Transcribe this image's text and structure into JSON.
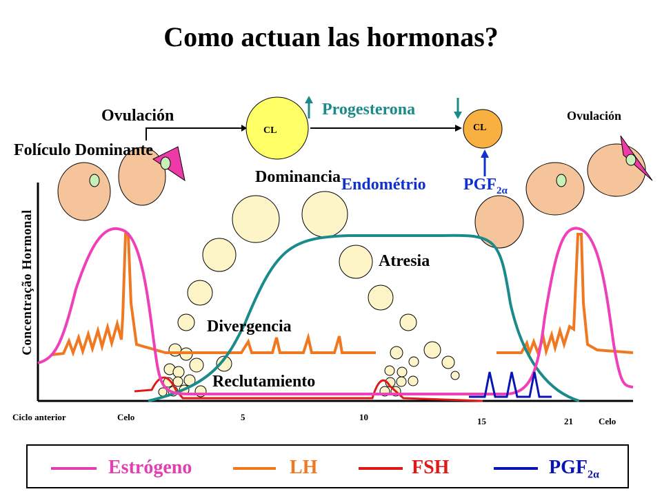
{
  "title": "Como actuan las hormonas?",
  "labels": {
    "ovulacion_left": "Ovulación",
    "ovulacion_right": "Ovulación",
    "foliculo_dominante": "Folículo Dominante",
    "cl_left": "CL",
    "cl_right": "CL",
    "progesterona": "Progesterona",
    "dominancia": "Dominancia",
    "endometrio": "Endométrio",
    "pgf_top": "PGF",
    "pgf_sub": "2α",
    "atresia": "Atresia",
    "divergencia": "Divergencia",
    "reclutamiento": "Reclutamiento",
    "y_axis": "Concentração Hormonal"
  },
  "x_ticks": {
    "ciclo_anterior": "Ciclo anterior",
    "celo_left": "Celo",
    "t5": "5",
    "t10": "10",
    "t15": "15",
    "t21": "21",
    "celo_right": "Celo"
  },
  "legend": [
    {
      "label": "Estrógeno",
      "color": "#e040b0"
    },
    {
      "label": "LH",
      "color": "#f07820"
    },
    {
      "label": "FSH",
      "color": "#e01818"
    },
    {
      "label": "PGF",
      "sub": "2α",
      "color": "#0a14b4"
    }
  ],
  "colors": {
    "follicle": "#f5c49a",
    "follicle_small": "#fdf5c8",
    "cl_yellow": "#ffff66",
    "cl_orange": "#f8b040",
    "progesterone": "#1a8a8a",
    "ovulation_wedge": "#ee3aa8",
    "oocyte": "#c8f0b8",
    "arrow_green": "#1a8a8a",
    "arrow_blue": "#1030d0"
  }
}
